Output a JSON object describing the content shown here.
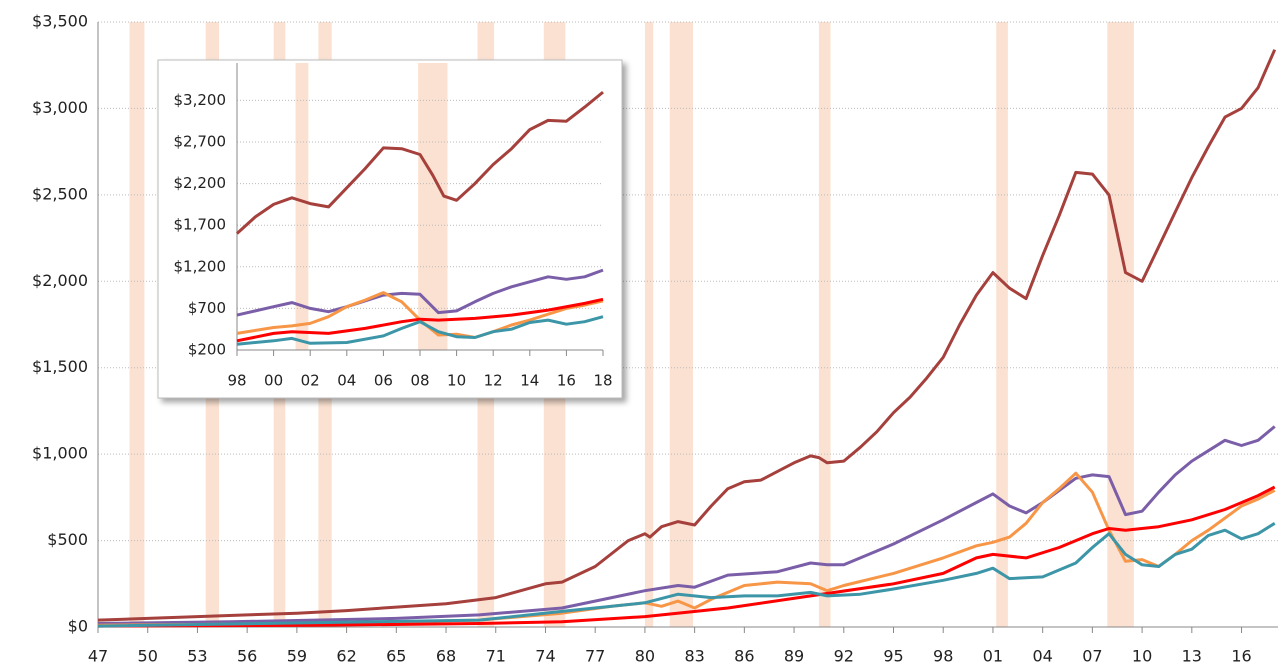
{
  "chart_data": [
    {
      "type": "line",
      "grid": true,
      "xlim": [
        1947,
        2018.2
      ],
      "ylim": [
        0,
        3500
      ],
      "yticks": [
        {
          "value": 0,
          "label": "$0"
        },
        {
          "value": 500,
          "label": "$500"
        },
        {
          "value": 1000,
          "label": "$1,000"
        },
        {
          "value": 1500,
          "label": "$1,500"
        },
        {
          "value": 2000,
          "label": "$2,000"
        },
        {
          "value": 2500,
          "label": "$2,500"
        },
        {
          "value": 3000,
          "label": "$3,000"
        },
        {
          "value": 3500,
          "label": "$3,500"
        }
      ],
      "xticks": [
        {
          "value": 1947,
          "label": "47"
        },
        {
          "value": 1950,
          "label": "50"
        },
        {
          "value": 1953,
          "label": "53"
        },
        {
          "value": 1956,
          "label": "56"
        },
        {
          "value": 1959,
          "label": "59"
        },
        {
          "value": 1962,
          "label": "62"
        },
        {
          "value": 1965,
          "label": "65"
        },
        {
          "value": 1968,
          "label": "68"
        },
        {
          "value": 1971,
          "label": "71"
        },
        {
          "value": 1974,
          "label": "74"
        },
        {
          "value": 1977,
          "label": "77"
        },
        {
          "value": 1980,
          "label": "80"
        },
        {
          "value": 1983,
          "label": "83"
        },
        {
          "value": 1986,
          "label": "86"
        },
        {
          "value": 1989,
          "label": "89"
        },
        {
          "value": 1992,
          "label": "92"
        },
        {
          "value": 1995,
          "label": "95"
        },
        {
          "value": 1998,
          "label": "98"
        },
        {
          "value": 2001,
          "label": "01"
        },
        {
          "value": 2004,
          "label": "04"
        },
        {
          "value": 2007,
          "label": "07"
        },
        {
          "value": 2010,
          "label": "10"
        },
        {
          "value": 2013,
          "label": "13"
        },
        {
          "value": 2016,
          "label": "16"
        }
      ],
      "shading_color": "#fbe1d1",
      "shading": [
        [
          1948.9,
          1949.8
        ],
        [
          1953.5,
          1954.3
        ],
        [
          1957.6,
          1958.3
        ],
        [
          1960.3,
          1961.1
        ],
        [
          1969.9,
          1970.9
        ],
        [
          1973.9,
          1975.2
        ],
        [
          1980.0,
          1980.5
        ],
        [
          1981.5,
          1982.9
        ],
        [
          1990.5,
          1991.2
        ],
        [
          2001.2,
          2001.9
        ],
        [
          2007.9,
          2009.5
        ]
      ],
      "series": [
        {
          "color": "#a5403c",
          "x": [
            1947,
            1950,
            1953,
            1956,
            1959,
            1962,
            1965,
            1968,
            1971,
            1974,
            1975,
            1977,
            1979,
            1980,
            1980.3,
            1981,
            1982,
            1983,
            1984,
            1985,
            1986,
            1987,
            1988,
            1989,
            1990,
            1990.5,
            1991,
            1992,
            1993,
            1994,
            1995,
            1996,
            1997,
            1998,
            1999,
            2000,
            2001,
            2002,
            2003,
            2004,
            2005,
            2006,
            2007,
            2008,
            2009,
            2010,
            2011,
            2012,
            2013,
            2014,
            2015,
            2016,
            2017,
            2018
          ],
          "values": [
            40,
            50,
            60,
            70,
            80,
            95,
            115,
            135,
            170,
            250,
            260,
            350,
            500,
            540,
            520,
            580,
            610,
            590,
            700,
            800,
            840,
            850,
            900,
            950,
            990,
            980,
            950,
            960,
            1040,
            1130,
            1240,
            1330,
            1440,
            1560,
            1750,
            1920,
            2050,
            1960,
            1900,
            2150,
            2380,
            2630,
            2620,
            2500,
            2050,
            2000,
            2200,
            2400,
            2600,
            2780,
            2950,
            3000,
            3120,
            3340
          ]
        },
        {
          "color": "#7b5ea8",
          "x": [
            1947,
            1955,
            1965,
            1970,
            1975,
            1978,
            1980,
            1982,
            1983,
            1985,
            1988,
            1990,
            1991,
            1992,
            1995,
            1998,
            2000,
            2001,
            2002,
            2003,
            2004,
            2006,
            2007,
            2008,
            2009,
            2010,
            2011,
            2012,
            2013,
            2014,
            2015,
            2016,
            2017,
            2018
          ],
          "values": [
            20,
            30,
            50,
            70,
            110,
            170,
            210,
            240,
            230,
            300,
            320,
            370,
            360,
            360,
            480,
            620,
            720,
            770,
            700,
            660,
            720,
            860,
            880,
            870,
            650,
            670,
            780,
            880,
            960,
            1020,
            1080,
            1050,
            1080,
            1160
          ]
        },
        {
          "color": "#f79646",
          "x": [
            1947,
            1960,
            1970,
            1975,
            1978,
            1980,
            1981,
            1982,
            1983,
            1984,
            1986,
            1988,
            1990,
            1991,
            1992,
            1995,
            1998,
            2000,
            2001,
            2002,
            2003,
            2004,
            2005,
            2006,
            2007,
            2008,
            2009,
            2010,
            2011,
            2012,
            2013,
            2014,
            2015,
            2016,
            2017,
            2018
          ],
          "values": [
            10,
            20,
            40,
            80,
            120,
            140,
            120,
            150,
            110,
            160,
            240,
            260,
            250,
            210,
            240,
            310,
            400,
            470,
            490,
            520,
            600,
            720,
            800,
            890,
            780,
            560,
            380,
            390,
            350,
            420,
            500,
            560,
            630,
            700,
            740,
            790
          ]
        },
        {
          "color": "#ff0000",
          "x": [
            1947,
            1960,
            1970,
            1975,
            1980,
            1985,
            1990,
            1995,
            1998,
            2000,
            2001,
            2003,
            2005,
            2007,
            2008,
            2009,
            2011,
            2013,
            2015,
            2017,
            2018
          ],
          "values": [
            5,
            10,
            20,
            30,
            60,
            110,
            180,
            250,
            310,
            400,
            420,
            400,
            460,
            540,
            570,
            560,
            580,
            620,
            680,
            760,
            810
          ]
        },
        {
          "color": "#3c96a8",
          "x": [
            1947,
            1970,
            1975,
            1978,
            1980,
            1982,
            1984,
            1986,
            1988,
            1990,
            1991,
            1993,
            1995,
            1998,
            2000,
            2001,
            2002,
            2004,
            2006,
            2007,
            2008,
            2009,
            2010,
            2011,
            2012,
            2013,
            2014,
            2015,
            2016,
            2017,
            2018
          ],
          "values": [
            5,
            40,
            90,
            120,
            140,
            190,
            170,
            180,
            180,
            200,
            180,
            190,
            220,
            270,
            310,
            340,
            280,
            290,
            370,
            460,
            540,
            420,
            360,
            350,
            420,
            450,
            530,
            560,
            510,
            540,
            600
          ]
        }
      ]
    },
    {
      "type": "line",
      "grid": true,
      "xlim": [
        1998,
        2018
      ],
      "ylim": [
        200,
        3650
      ],
      "yticks": [
        {
          "value": 200,
          "label": "$200"
        },
        {
          "value": 700,
          "label": "$700"
        },
        {
          "value": 1200,
          "label": "$1,200"
        },
        {
          "value": 1700,
          "label": "$1,700"
        },
        {
          "value": 2200,
          "label": "$2,200"
        },
        {
          "value": 2700,
          "label": "$2,700"
        },
        {
          "value": 3200,
          "label": "$3,200"
        }
      ],
      "xticks": [
        {
          "value": 1998,
          "label": "98"
        },
        {
          "value": 2000,
          "label": "00"
        },
        {
          "value": 2002,
          "label": "02"
        },
        {
          "value": 2004,
          "label": "04"
        },
        {
          "value": 2006,
          "label": "06"
        },
        {
          "value": 2008,
          "label": "08"
        },
        {
          "value": 2010,
          "label": "10"
        },
        {
          "value": 2012,
          "label": "12"
        },
        {
          "value": 2014,
          "label": "14"
        },
        {
          "value": 2016,
          "label": "16"
        },
        {
          "value": 2018,
          "label": "18"
        }
      ],
      "shading_color": "#fbe1d1",
      "shading": [
        [
          2001.2,
          2001.9
        ],
        [
          2007.9,
          2009.5
        ]
      ],
      "series": [
        {
          "color": "#a5403c",
          "x": [
            1998,
            1999,
            2000,
            2001,
            2002,
            2003,
            2004,
            2005,
            2006,
            2007,
            2008,
            2008.7,
            2009.3,
            2010,
            2011,
            2012,
            2013,
            2014,
            2015,
            2016,
            2017,
            2018
          ],
          "values": [
            1600,
            1800,
            1950,
            2030,
            1960,
            1920,
            2150,
            2380,
            2630,
            2620,
            2550,
            2300,
            2050,
            2000,
            2200,
            2430,
            2620,
            2850,
            2960,
            2950,
            3120,
            3300
          ]
        },
        {
          "color": "#7b5ea8",
          "x": [
            1998,
            2000,
            2001,
            2002,
            2003,
            2004,
            2006,
            2007,
            2008,
            2009,
            2010,
            2011,
            2012,
            2013,
            2014,
            2015,
            2016,
            2017,
            2018
          ],
          "values": [
            620,
            720,
            770,
            700,
            660,
            720,
            860,
            880,
            870,
            650,
            670,
            780,
            880,
            960,
            1020,
            1080,
            1050,
            1080,
            1160
          ]
        },
        {
          "color": "#f79646",
          "x": [
            1998,
            2000,
            2001,
            2002,
            2003,
            2004,
            2005,
            2006,
            2007,
            2008,
            2009,
            2010,
            2011,
            2012,
            2013,
            2014,
            2015,
            2016,
            2017,
            2018
          ],
          "values": [
            400,
            470,
            490,
            520,
            600,
            720,
            800,
            890,
            780,
            560,
            380,
            390,
            350,
            420,
            500,
            560,
            630,
            700,
            740,
            790
          ]
        },
        {
          "color": "#ff0000",
          "x": [
            1998,
            2000,
            2001,
            2003,
            2005,
            2007,
            2008,
            2009,
            2011,
            2013,
            2015,
            2017,
            2018
          ],
          "values": [
            310,
            400,
            420,
            400,
            460,
            540,
            570,
            560,
            580,
            620,
            680,
            760,
            810
          ]
        },
        {
          "color": "#3c96a8",
          "x": [
            1998,
            2000,
            2001,
            2002,
            2004,
            2006,
            2007,
            2008,
            2009,
            2010,
            2011,
            2012,
            2013,
            2014,
            2015,
            2016,
            2017,
            2018
          ],
          "values": [
            270,
            310,
            340,
            280,
            290,
            370,
            460,
            540,
            420,
            360,
            350,
            420,
            450,
            530,
            560,
            510,
            540,
            600
          ]
        }
      ]
    }
  ]
}
